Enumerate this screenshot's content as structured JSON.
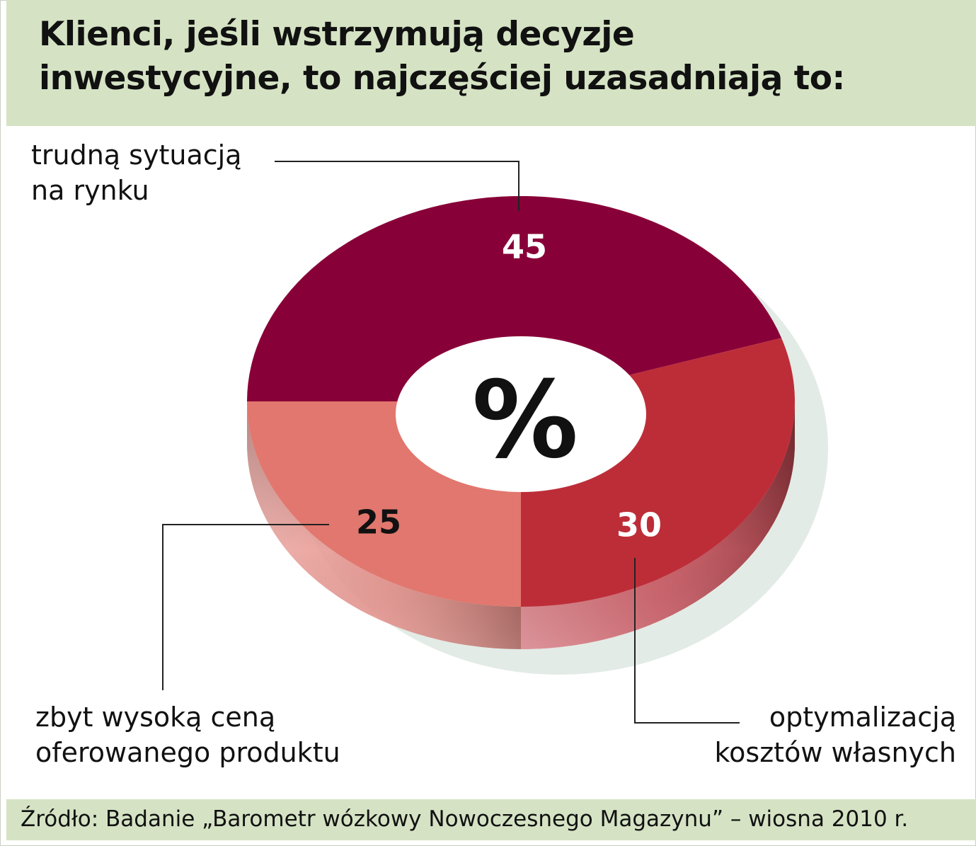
{
  "title": {
    "line1": "Klienci, jeśli wstrzymują decyzje",
    "line2": "inwestycyjne, to najczęściej uzasadniają to:"
  },
  "center_label": "%",
  "labels": {
    "market": [
      "trudną sytuacją",
      "na rynku"
    ],
    "price": [
      "zbyt wysoką ceną",
      "oferowanego produktu"
    ],
    "costs": [
      "optymalizacją",
      "kosztów własnych"
    ]
  },
  "source": "Źródło: Badanie  „Barometr wózkowy Nowoczesnego Magazynu” – wiosna 2010 r.",
  "chart_data": {
    "type": "pie",
    "style": "3d-donut",
    "unit": "%",
    "slices": [
      {
        "label": "trudną sytuacją na rynku",
        "value": 45,
        "color": "#880038",
        "value_color": "#ffffff"
      },
      {
        "label": "optymalizacją kosztów własnych",
        "value": 30,
        "color": "#bd2d38",
        "value_color": "#ffffff"
      },
      {
        "label": "zbyt wysoką ceną oferowanego produktu",
        "value": 25,
        "color": "#e1776e",
        "value_color": "#111111"
      }
    ]
  }
}
